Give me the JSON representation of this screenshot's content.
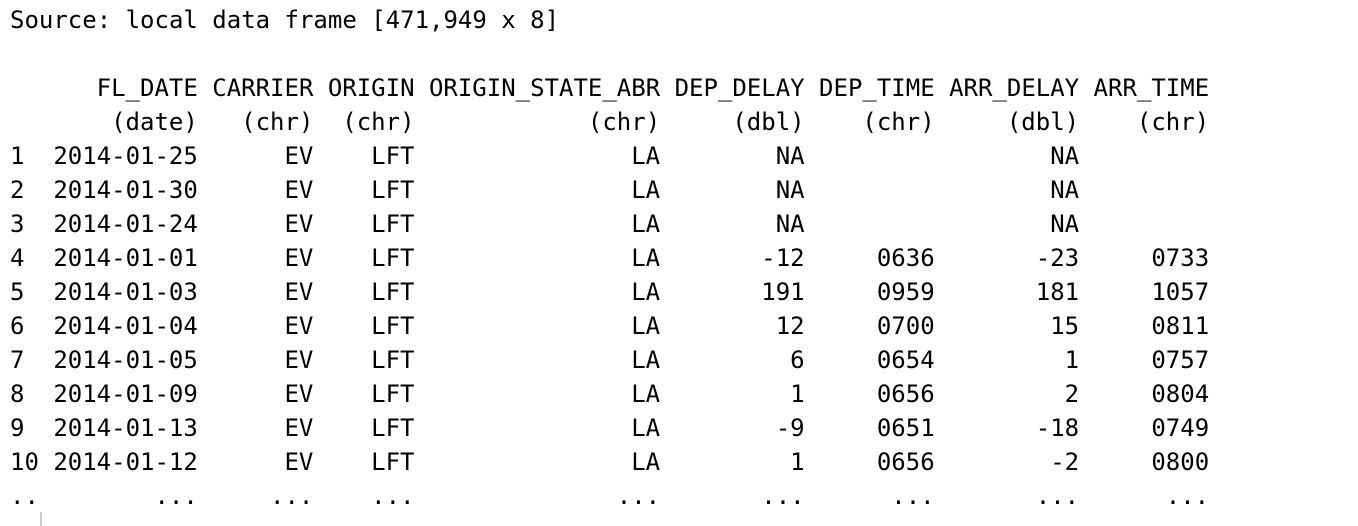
{
  "source": "Source: local data frame [471,949 x 8]",
  "columns": [
    {
      "name": "FL_DATE",
      "type": "(date)"
    },
    {
      "name": "CARRIER",
      "type": "(chr)"
    },
    {
      "name": "ORIGIN",
      "type": "(chr)"
    },
    {
      "name": "ORIGIN_STATE_ABR",
      "type": "(chr)"
    },
    {
      "name": "DEP_DELAY",
      "type": "(dbl)"
    },
    {
      "name": "DEP_TIME",
      "type": "(chr)"
    },
    {
      "name": "ARR_DELAY",
      "type": "(dbl)"
    },
    {
      "name": "ARR_TIME",
      "type": "(chr)"
    }
  ],
  "rows": [
    [
      1,
      "2014-01-25",
      "EV",
      "LFT",
      "LA",
      "NA",
      null,
      "NA",
      null
    ],
    [
      2,
      "2014-01-30",
      "EV",
      "LFT",
      "LA",
      "NA",
      null,
      "NA",
      null
    ],
    [
      3,
      "2014-01-24",
      "EV",
      "LFT",
      "LA",
      "NA",
      null,
      "NA",
      null
    ],
    [
      4,
      "2014-01-01",
      "EV",
      "LFT",
      "LA",
      -12,
      "0636",
      -23,
      "0733"
    ],
    [
      5,
      "2014-01-03",
      "EV",
      "LFT",
      "LA",
      191,
      "0959",
      181,
      "1057"
    ],
    [
      6,
      "2014-01-04",
      "EV",
      "LFT",
      "LA",
      12,
      "0700",
      15,
      "0811"
    ],
    [
      7,
      "2014-01-05",
      "EV",
      "LFT",
      "LA",
      6,
      "0654",
      1,
      "0757"
    ],
    [
      8,
      "2014-01-09",
      "EV",
      "LFT",
      "LA",
      1,
      "0656",
      2,
      "0804"
    ],
    [
      9,
      "2014-01-13",
      "EV",
      "LFT",
      "LA",
      -9,
      "0651",
      -18,
      "0749"
    ],
    [
      10,
      "2014-01-12",
      "EV",
      "LFT",
      "LA",
      1,
      "0656",
      -2,
      "0800"
    ]
  ],
  "ellipsis": [
    "..",
    "...",
    "...",
    "...",
    "...",
    "...",
    "...",
    "...",
    "..."
  ]
}
